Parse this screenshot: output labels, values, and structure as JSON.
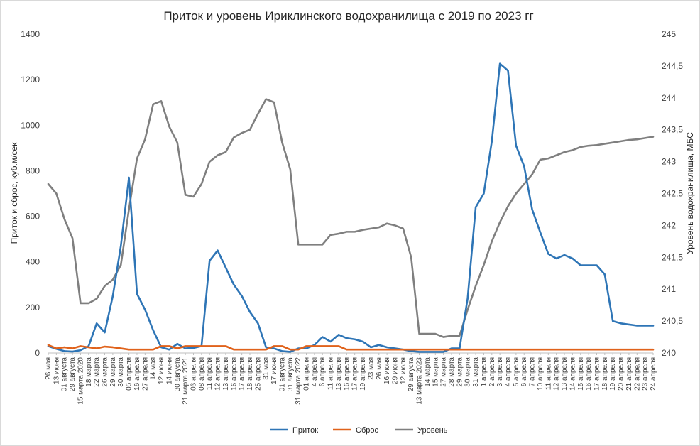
{
  "chart_data": {
    "type": "line",
    "title": "Приток и уровень Ириклинского водохранилища с 2019 по 2023 гг",
    "ylabel": "Приток и сброс, куб.м/сек",
    "y2label": "Уровень водохранилища, МБС",
    "ylim": [
      0,
      1400
    ],
    "y2lim": [
      240,
      245
    ],
    "yticks": [
      "0",
      "200",
      "400",
      "600",
      "800",
      "1000",
      "1200",
      "1400"
    ],
    "y2ticks": [
      "240",
      "240,5",
      "241",
      "241,5",
      "242",
      "242,5",
      "243",
      "243,5",
      "244",
      "244,5",
      "245"
    ],
    "grid": false,
    "legend_position": "bottom",
    "categories": [
      "26 мая",
      "13 июня",
      "01 августа",
      "29 августа",
      "15 марта 2020",
      "18 марта",
      "22 марта",
      "26 марта",
      "29 марта",
      "30 марта",
      "05 апреля",
      "16 апреля",
      "27 апреля",
      "14 мая",
      "12 июня",
      "14 июня",
      "30 августа",
      "21 марта 2021",
      "03 апреля",
      "08 апреля",
      "11 апреля",
      "12 апреля",
      "13 апреля",
      "16 апреля",
      "17 апреля",
      "18 апреля",
      "25 апреля",
      "31 мая",
      "17 июня",
      "01 августа",
      "31 августа",
      "31 марта 2022",
      "01 апреля",
      "4 апреля",
      "6 апреля",
      "11 апреля",
      "13 апреля",
      "16 апреля",
      "17 апреля",
      "19 апреля",
      "23 мая",
      "26 мая",
      "16 июня",
      "29 июня",
      "12 июля",
      "29 августа",
      "13 марта 2023",
      "14 марта",
      "15 марта",
      "27 марта",
      "28 марта",
      "29 марта",
      "30 марта",
      "31 марта",
      "1 апреля",
      "2 апреля",
      "3 апреля",
      "4 апреля",
      "5 апреля",
      "6 апреля",
      "7 апреля",
      "10 апреля",
      "11 апреля",
      "12 апреля",
      "13 апреля",
      "14 апреля",
      "15 апреля",
      "16 апреля",
      "17 апреля",
      "18 апреля",
      "19 апреля",
      "20 апреля",
      "21 апреля",
      "22 апреля",
      "23 апреля",
      "24 апреля"
    ],
    "series": [
      {
        "name": "Приток",
        "color": "#2e75b6",
        "axis": "left",
        "values": [
          30,
          18,
          8,
          6,
          12,
          30,
          130,
          90,
          250,
          470,
          770,
          260,
          190,
          100,
          25,
          15,
          40,
          20,
          22,
          30,
          405,
          450,
          375,
          300,
          250,
          180,
          130,
          25,
          20,
          8,
          5,
          20,
          20,
          35,
          70,
          50,
          80,
          65,
          60,
          50,
          25,
          35,
          25,
          20,
          15,
          8,
          5,
          5,
          5,
          5,
          20,
          20,
          240,
          640,
          700,
          930,
          1270,
          1240,
          910,
          820,
          630,
          530,
          435,
          415,
          430,
          415,
          385,
          385,
          385,
          345,
          140,
          130,
          125,
          120,
          120,
          120
        ]
      },
      {
        "name": "Сброс",
        "color": "#e0621b",
        "axis": "left",
        "values": [
          35,
          20,
          25,
          20,
          30,
          25,
          20,
          28,
          25,
          20,
          15,
          15,
          15,
          15,
          30,
          30,
          20,
          30,
          30,
          30,
          30,
          30,
          30,
          15,
          15,
          15,
          15,
          15,
          30,
          30,
          15,
          15,
          30,
          30,
          30,
          30,
          30,
          15,
          15,
          15,
          15,
          15,
          15,
          15,
          15,
          15,
          15,
          15,
          15,
          15,
          15,
          15,
          15,
          15,
          15,
          15,
          15,
          15,
          15,
          15,
          15,
          15,
          15,
          15,
          15,
          15,
          15,
          15,
          15,
          15,
          15,
          15,
          15,
          15,
          15,
          15
        ]
      },
      {
        "name": "Уровень",
        "color": "#7f7f7f",
        "axis": "right",
        "values": [
          242.65,
          242.5,
          242.1,
          241.8,
          240.78,
          240.78,
          240.85,
          241.05,
          241.15,
          241.38,
          242.25,
          243.05,
          243.35,
          243.9,
          243.95,
          243.55,
          243.3,
          242.48,
          242.45,
          242.65,
          243.0,
          243.1,
          243.15,
          243.38,
          243.45,
          243.5,
          243.75,
          243.98,
          243.93,
          243.3,
          242.88,
          241.7,
          241.7,
          241.7,
          241.7,
          241.85,
          241.87,
          241.9,
          241.9,
          241.93,
          241.95,
          241.97,
          242.03,
          242.0,
          241.95,
          241.5,
          240.3,
          240.3,
          240.3,
          240.25,
          240.27,
          240.27,
          240.68,
          241.05,
          241.38,
          241.75,
          242.05,
          242.3,
          242.5,
          242.65,
          242.8,
          243.03,
          243.05,
          243.1,
          243.15,
          243.18,
          243.23,
          243.25,
          243.26,
          243.28,
          243.3,
          243.32,
          243.34,
          243.35,
          243.37,
          243.39
        ]
      }
    ]
  }
}
